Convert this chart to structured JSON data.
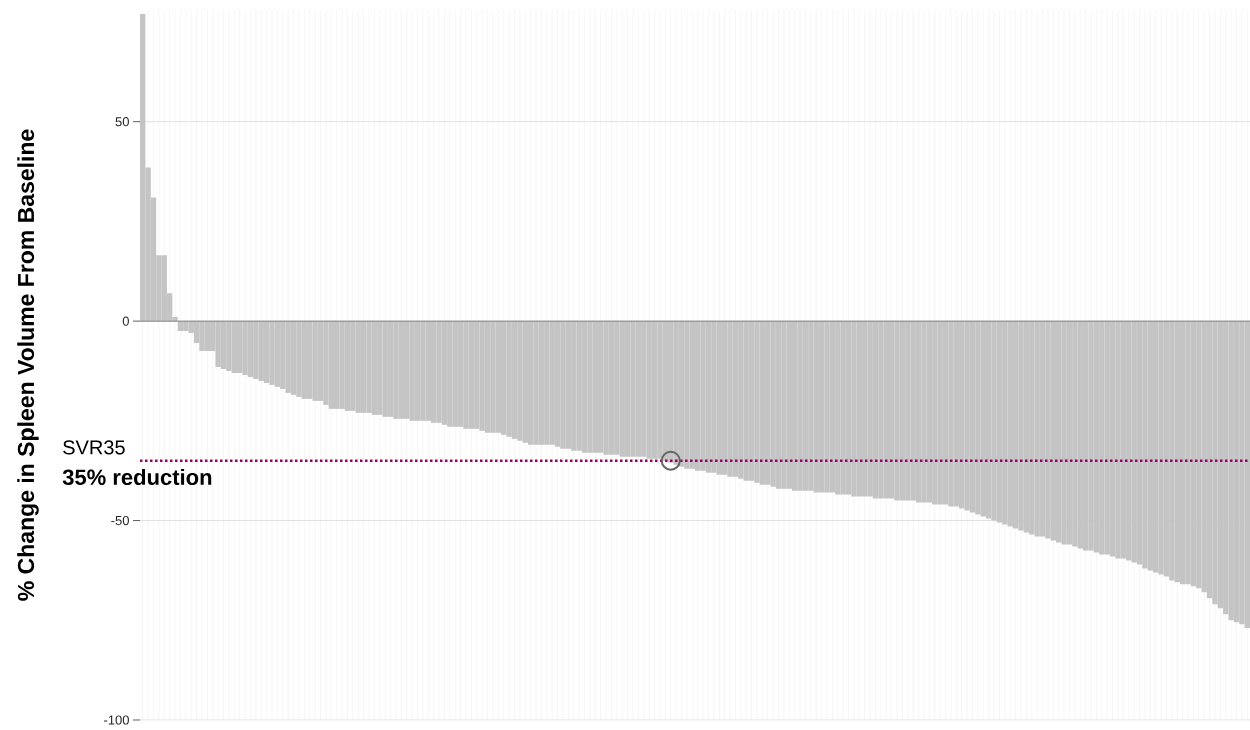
{
  "chart_data": {
    "type": "bar",
    "ylabel": "% Change in Spleen Volume From Baseline",
    "categories": [
      null,
      null,
      null,
      null,
      null,
      null,
      null,
      null,
      null,
      null,
      null,
      null,
      null,
      null,
      null,
      null,
      null,
      null,
      null,
      null,
      null,
      null,
      null,
      null,
      null,
      null,
      null,
      null,
      null,
      null,
      null,
      null,
      null,
      null,
      null,
      null,
      null,
      null,
      null,
      null,
      null,
      null,
      null,
      null,
      null,
      null,
      null,
      null,
      null,
      null,
      null,
      null,
      null,
      null,
      null,
      null,
      null,
      null,
      null,
      null,
      null,
      null,
      null,
      null,
      null,
      null,
      null,
      null,
      null,
      null,
      null,
      null,
      null,
      null,
      null,
      null,
      null,
      null,
      null,
      null,
      null,
      null,
      null,
      null,
      null,
      null,
      null,
      null,
      null,
      null,
      null,
      null,
      null,
      null,
      null,
      null,
      null,
      null,
      null,
      null,
      null,
      null,
      null,
      null,
      null,
      null,
      null,
      null,
      null,
      null,
      null,
      null,
      null,
      null,
      null,
      null,
      null,
      null,
      null,
      null,
      null,
      null,
      null,
      null,
      null,
      null,
      null,
      null,
      null,
      null,
      null,
      null,
      null,
      null,
      null,
      null,
      null,
      null,
      null,
      null,
      null,
      null,
      null,
      null,
      null,
      null,
      null,
      null,
      null,
      null,
      null,
      null,
      null,
      null,
      null,
      null,
      null,
      null,
      null,
      null,
      null,
      null,
      null,
      null,
      null,
      null,
      null,
      null,
      null,
      null,
      null,
      null,
      null,
      null,
      null,
      null,
      null,
      null,
      null,
      null,
      null,
      null,
      null,
      null,
      null,
      null,
      null,
      null,
      null,
      null,
      null,
      null,
      null,
      null,
      null,
      null,
      null,
      null,
      null,
      null,
      null,
      null,
      null,
      null,
      null,
      null
    ],
    "series": [
      {
        "type": "bar",
        "color": "#c4c4c4",
        "values": [
          77,
          38.5,
          31,
          16.5,
          16.5,
          7,
          1,
          -2.5,
          -2.5,
          -3,
          -5.5,
          -7.5,
          -7.5,
          -7.5,
          -11.5,
          -12,
          -12.5,
          -13,
          -13,
          -13.5,
          -14,
          -14.5,
          -15,
          -15.5,
          -16,
          -16.5,
          -17,
          -18,
          -18.5,
          -19,
          -19.5,
          -19.5,
          -20,
          -20,
          -21,
          -22,
          -22,
          -22,
          -22.5,
          -22.5,
          -23,
          -23,
          -23,
          -23.5,
          -23.5,
          -24,
          -24,
          -24.5,
          -24.5,
          -24.5,
          -25,
          -25,
          -25,
          -25,
          -25.5,
          -25.5,
          -26,
          -26.5,
          -26.5,
          -26.5,
          -27,
          -27,
          -27,
          -27.5,
          -28,
          -28,
          -28,
          -28.5,
          -29,
          -29.5,
          -30,
          -30.5,
          -31,
          -31,
          -31,
          -31,
          -31,
          -31.5,
          -32,
          -32,
          -32.5,
          -32.5,
          -33,
          -33,
          -33,
          -33,
          -33.5,
          -33.5,
          -33.5,
          -34,
          -34,
          -34,
          -34,
          -34,
          -34.5,
          -34.5,
          -34.5,
          -35,
          -35.5,
          -36,
          -36.5,
          -37,
          -37,
          -37.5,
          -37.5,
          -38,
          -38,
          -38.5,
          -38.5,
          -39,
          -39,
          -39.5,
          -40,
          -40,
          -40.5,
          -41,
          -41,
          -41.5,
          -42,
          -42,
          -42,
          -42.5,
          -42.5,
          -42.5,
          -42.5,
          -43,
          -43,
          -43,
          -43,
          -43.5,
          -43.5,
          -43.5,
          -44,
          -44,
          -44,
          -44,
          -44.5,
          -44.5,
          -44.5,
          -44.5,
          -45,
          -45,
          -45,
          -45,
          -45.5,
          -45.5,
          -45.5,
          -46,
          -46,
          -46,
          -46.5,
          -46.5,
          -47,
          -47.5,
          -48,
          -48.5,
          -49,
          -49.5,
          -50,
          -50.5,
          -51,
          -51.5,
          -52,
          -52.5,
          -53,
          -53.5,
          -54,
          -54,
          -54.5,
          -55,
          -55.5,
          -56,
          -56,
          -56.5,
          -57,
          -57.5,
          -57.5,
          -58,
          -58.5,
          -58.5,
          -59,
          -59.5,
          -59.5,
          -60,
          -60.5,
          -61,
          -62,
          -62.5,
          -63,
          -63.5,
          -64,
          -65,
          -65.5,
          -66,
          -66,
          -66.5,
          -67,
          -68,
          -69.5,
          -71,
          -72,
          -73.5,
          -75,
          -75.5,
          -76,
          -77
        ]
      },
      {
        "type": "scatter",
        "color": "#666666",
        "marker": "circle",
        "values": [
          null,
          null,
          null,
          null,
          null,
          null,
          null,
          null,
          null,
          null,
          null,
          null,
          null,
          null,
          null,
          null,
          null,
          null,
          null,
          null,
          null,
          null,
          null,
          null,
          null,
          null,
          null,
          null,
          null,
          null,
          null,
          null,
          null,
          null,
          null,
          null,
          null,
          null,
          null,
          null,
          null,
          null,
          null,
          null,
          null,
          null,
          null,
          null,
          null,
          null,
          null,
          null,
          null,
          null,
          null,
          null,
          null,
          null,
          null,
          null,
          null,
          null,
          null,
          null,
          null,
          null,
          null,
          null,
          null,
          null,
          null,
          null,
          null,
          null,
          null,
          null,
          null,
          null,
          null,
          null,
          null,
          null,
          null,
          null,
          null,
          null,
          null,
          null,
          null,
          null,
          null,
          null,
          null,
          null,
          null,
          null,
          null,
          null,
          -35,
          null,
          null,
          null,
          null,
          null,
          null,
          null,
          null,
          null,
          null,
          null,
          null,
          null,
          null,
          null,
          null,
          null,
          null,
          null,
          null,
          null,
          null,
          null,
          null,
          null,
          null,
          null,
          null,
          null,
          null,
          null,
          null,
          null,
          null,
          null,
          null,
          null,
          null,
          null,
          null,
          null,
          null,
          null,
          null,
          null,
          null,
          null,
          null,
          null,
          null,
          null,
          null,
          null,
          null,
          null,
          null,
          null,
          null,
          null,
          null,
          null,
          null,
          null,
          null,
          null,
          null,
          null,
          null,
          null,
          null,
          null,
          null,
          null,
          null,
          null,
          null,
          null,
          null,
          null,
          null,
          null,
          null,
          null,
          null,
          null,
          null,
          null,
          null,
          null,
          null,
          null,
          null,
          null,
          null,
          null,
          null,
          null,
          null,
          null,
          null,
          null,
          null,
          null,
          null,
          null,
          null,
          null
        ]
      }
    ],
    "ylim": [
      -100,
      78
    ],
    "yticks": [
      -100,
      -50,
      0,
      50
    ],
    "grid": true,
    "tick_labels": "y",
    "ref_lines": [
      {
        "axis": "y",
        "value": -35,
        "label": "SVR35",
        "color": "#990066",
        "line_style": "dotted"
      }
    ],
    "annotations": [
      {
        "text": "35% reduction",
        "y": -35
      }
    ]
  }
}
